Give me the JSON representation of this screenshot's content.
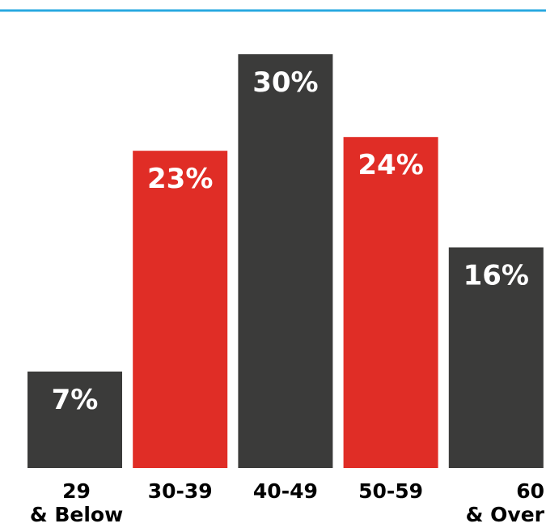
{
  "colors": {
    "accent_line": "#29a8e0",
    "dark": "#3b3b3a",
    "red": "#e02d26",
    "label_text": "#ffffff",
    "category_text": "#000000"
  },
  "chart_data": {
    "type": "bar",
    "title": "",
    "xlabel": "",
    "ylabel": "",
    "ylim": [
      0,
      30
    ],
    "grid": false,
    "legend": "none",
    "categories": [
      "29 & Below",
      "30-39",
      "40-49",
      "50-59",
      "60 & Over"
    ],
    "category_lines": [
      [
        "29",
        "& Below"
      ],
      [
        "30-39"
      ],
      [
        "40-49"
      ],
      [
        "50-59"
      ],
      [
        "60",
        "& Over"
      ]
    ],
    "values": [
      7,
      23,
      30,
      24,
      16
    ],
    "value_labels": [
      "7%",
      "23%",
      "30%",
      "24%",
      "16%"
    ],
    "bar_colors": [
      "dark",
      "red",
      "dark",
      "red",
      "dark"
    ]
  }
}
